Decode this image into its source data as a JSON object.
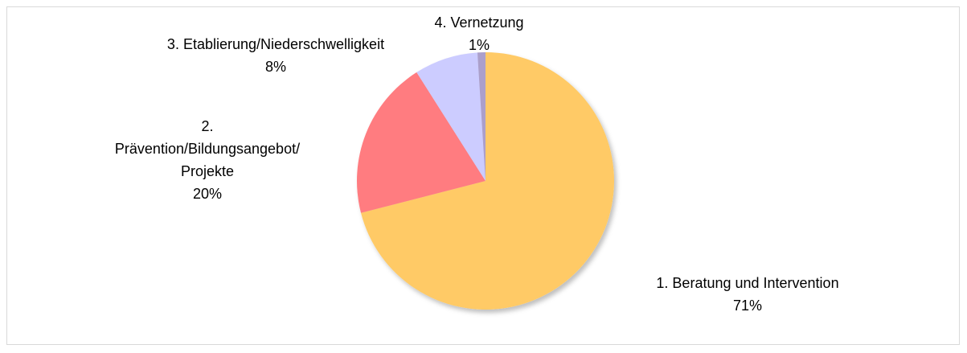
{
  "chart_data": {
    "type": "pie",
    "categories": [
      "1. Beratung und Intervention",
      "2.\nPrävention/Bildungsangebot/\nProjekte",
      "3. Etablierung/Niederschwelligkeit",
      "4. Vernetzung"
    ],
    "values": [
      71,
      20,
      8,
      1
    ],
    "value_labels": [
      "71%",
      "20%",
      "8%",
      "1%"
    ],
    "colors": [
      "#ffca66",
      "#ff7c80",
      "#ccccff",
      "#ab9fcb"
    ]
  }
}
